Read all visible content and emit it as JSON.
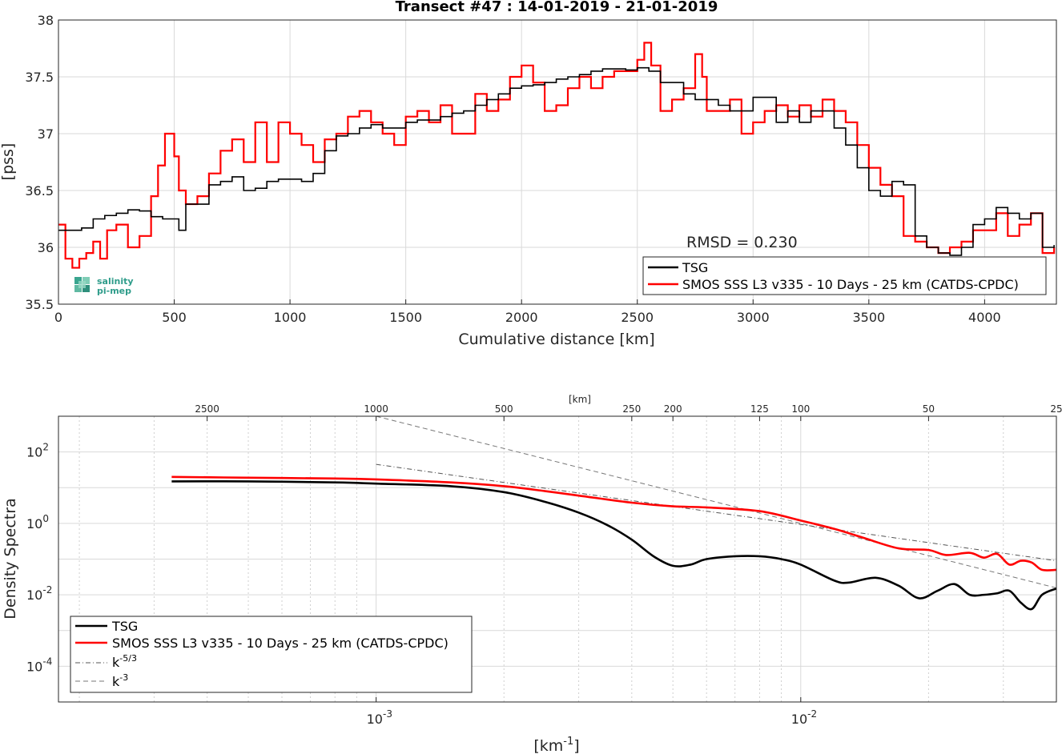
{
  "chart_data": [
    {
      "type": "line",
      "title": "Transect #47 : 14-01-2019 - 21-01-2019",
      "xlabel": "Cumulative distance [km]",
      "ylabel": "[pss]",
      "xlim": [
        0,
        4310
      ],
      "ylim": [
        35.5,
        38
      ],
      "xticks": [
        "0",
        "500",
        "1000",
        "1500",
        "2000",
        "2500",
        "3000",
        "3500",
        "4000"
      ],
      "yticks": [
        "35.5",
        "36",
        "36.5",
        "37",
        "37.5",
        "38"
      ],
      "grid": true,
      "legend_position": "bottom-right",
      "annotation": "RMSD = 0.230",
      "logo": {
        "line1": "salinity",
        "line2": "pi-mep"
      },
      "series": [
        {
          "name": "TSG",
          "color": "#000000",
          "x": [
            0,
            50,
            100,
            150,
            200,
            250,
            300,
            350,
            400,
            450,
            500,
            520,
            550,
            600,
            650,
            700,
            750,
            800,
            850,
            900,
            950,
            1000,
            1050,
            1100,
            1150,
            1200,
            1250,
            1300,
            1350,
            1400,
            1450,
            1500,
            1550,
            1600,
            1650,
            1700,
            1750,
            1800,
            1850,
            1900,
            1950,
            2000,
            2050,
            2100,
            2150,
            2200,
            2250,
            2300,
            2350,
            2400,
            2450,
            2500,
            2550,
            2600,
            2650,
            2700,
            2750,
            2800,
            2850,
            2900,
            2950,
            3000,
            3050,
            3100,
            3150,
            3200,
            3250,
            3300,
            3350,
            3400,
            3450,
            3500,
            3550,
            3600,
            3650,
            3700,
            3750,
            3800,
            3850,
            3900,
            3950,
            4000,
            4050,
            4100,
            4150,
            4200,
            4250,
            4300
          ],
          "y": [
            36.15,
            36.15,
            36.17,
            36.25,
            36.28,
            36.3,
            36.33,
            36.32,
            36.27,
            36.25,
            36.25,
            36.15,
            36.38,
            36.38,
            36.55,
            36.58,
            36.62,
            36.5,
            36.52,
            36.58,
            36.6,
            36.6,
            36.58,
            36.65,
            36.85,
            36.98,
            37.0,
            37.05,
            37.08,
            37.05,
            37.05,
            37.1,
            37.12,
            37.12,
            37.15,
            37.18,
            37.2,
            37.25,
            37.3,
            37.35,
            37.4,
            37.42,
            37.43,
            37.45,
            37.48,
            37.5,
            37.52,
            37.55,
            37.57,
            37.57,
            37.56,
            37.58,
            37.55,
            37.45,
            37.45,
            37.35,
            37.3,
            37.3,
            37.25,
            37.2,
            37.2,
            37.32,
            37.32,
            37.1,
            37.2,
            37.1,
            37.2,
            37.2,
            37.05,
            36.9,
            36.7,
            36.5,
            36.45,
            36.58,
            36.55,
            36.1,
            36.0,
            35.95,
            35.93,
            36.0,
            36.2,
            36.25,
            36.35,
            36.3,
            36.25,
            36.3,
            36.0,
            36.02
          ]
        },
        {
          "name": "SMOS SSS L3 v335 - 10 Days - 25 km (CATDS-CPDC)",
          "color": "#ff0000",
          "x": [
            0,
            30,
            60,
            90,
            120,
            150,
            180,
            210,
            250,
            300,
            350,
            400,
            430,
            460,
            480,
            500,
            520,
            550,
            600,
            650,
            700,
            750,
            800,
            850,
            900,
            950,
            1000,
            1050,
            1100,
            1150,
            1200,
            1250,
            1300,
            1350,
            1400,
            1450,
            1500,
            1550,
            1600,
            1650,
            1700,
            1750,
            1800,
            1850,
            1900,
            1950,
            2000,
            2050,
            2100,
            2150,
            2200,
            2250,
            2300,
            2350,
            2400,
            2450,
            2500,
            2530,
            2560,
            2600,
            2650,
            2700,
            2750,
            2780,
            2800,
            2850,
            2900,
            2950,
            3000,
            3050,
            3100,
            3150,
            3200,
            3250,
            3300,
            3350,
            3400,
            3450,
            3500,
            3550,
            3600,
            3650,
            3700,
            3750,
            3800,
            3850,
            3900,
            3950,
            4000,
            4050,
            4100,
            4150,
            4200,
            4250,
            4300
          ],
          "y": [
            36.2,
            35.9,
            35.82,
            35.9,
            35.95,
            36.05,
            35.9,
            36.15,
            36.2,
            36.0,
            36.1,
            36.45,
            36.72,
            37.0,
            37.0,
            36.8,
            36.5,
            36.38,
            36.45,
            36.65,
            36.85,
            36.95,
            36.75,
            37.1,
            36.75,
            37.1,
            37.0,
            36.9,
            36.75,
            36.95,
            37.0,
            37.15,
            37.2,
            37.1,
            37.0,
            36.9,
            37.15,
            37.2,
            37.1,
            37.25,
            37.0,
            37.0,
            37.35,
            37.2,
            37.3,
            37.5,
            37.6,
            37.45,
            37.2,
            37.25,
            37.4,
            37.5,
            37.4,
            37.5,
            37.55,
            37.55,
            37.65,
            37.8,
            37.6,
            37.2,
            37.3,
            37.4,
            37.7,
            37.5,
            37.2,
            37.2,
            37.3,
            37.0,
            37.1,
            37.2,
            37.25,
            37.15,
            37.25,
            37.15,
            37.3,
            37.2,
            37.1,
            36.9,
            36.7,
            36.55,
            36.45,
            36.1,
            36.05,
            36.0,
            35.95,
            36.0,
            36.05,
            36.15,
            36.15,
            36.3,
            36.1,
            36.2,
            36.3,
            35.95,
            36.0
          ]
        }
      ]
    },
    {
      "type": "line",
      "title": "",
      "xlabel": "[km",
      "xlabel_sup": "-1",
      "xlabel_end": "]",
      "ylabel": "Density Spectra",
      "xscale": "log",
      "yscale": "log",
      "xlim": [
        0.0001786,
        0.04
      ],
      "ylim": [
        1e-05,
        1000
      ],
      "xticks": [
        {
          "v": 0.001,
          "base": "10",
          "exp": "-3"
        },
        {
          "v": 0.01,
          "base": "10",
          "exp": "-2"
        }
      ],
      "yticks": [
        {
          "v": 0.0001,
          "base": "10",
          "exp": "-4"
        },
        {
          "v": 0.01,
          "base": "10",
          "exp": "-2"
        },
        {
          "v": 1,
          "base": "10",
          "exp": "0"
        },
        {
          "v": 100,
          "base": "10",
          "exp": "2"
        }
      ],
      "top_axis_label": "[km]",
      "top_ticks": [
        {
          "km": 2500,
          "label": "2500"
        },
        {
          "km": 1000,
          "label": "1000"
        },
        {
          "km": 500,
          "label": "500"
        },
        {
          "km": 250,
          "label": "250"
        },
        {
          "km": 200,
          "label": "200"
        },
        {
          "km": 125,
          "label": "125"
        },
        {
          "km": 100,
          "label": "100"
        },
        {
          "km": 50,
          "label": "50"
        },
        {
          "km": 25,
          "label": "25"
        }
      ],
      "grid": true,
      "legend_position": "bottom-left",
      "series": [
        {
          "name": "TSG",
          "color": "#000000",
          "x": [
            0.00033,
            0.0005,
            0.0008,
            0.001,
            0.0015,
            0.002,
            0.0025,
            0.003,
            0.0035,
            0.004,
            0.0045,
            0.005,
            0.0055,
            0.006,
            0.007,
            0.008,
            0.009,
            0.01,
            0.012,
            0.013,
            0.015,
            0.017,
            0.019,
            0.021,
            0.023,
            0.025,
            0.027,
            0.029,
            0.031,
            0.033,
            0.035,
            0.037,
            0.04
          ],
          "y": [
            15,
            15,
            14,
            13,
            11,
            7.5,
            4,
            2,
            0.9,
            0.35,
            0.12,
            0.065,
            0.07,
            0.1,
            0.12,
            0.12,
            0.1,
            0.07,
            0.025,
            0.022,
            0.03,
            0.018,
            0.008,
            0.013,
            0.02,
            0.01,
            0.01,
            0.011,
            0.013,
            0.006,
            0.004,
            0.01,
            0.015
          ]
        },
        {
          "name": "SMOS SSS L3 v335 - 10 Days - 25 km (CATDS-CPDC)",
          "color": "#ff0000",
          "x": [
            0.00033,
            0.0005,
            0.0008,
            0.001,
            0.0015,
            0.002,
            0.0025,
            0.003,
            0.004,
            0.005,
            0.006,
            0.008,
            0.01,
            0.012,
            0.014,
            0.017,
            0.02,
            0.022,
            0.025,
            0.027,
            0.029,
            0.031,
            0.033,
            0.035,
            0.037,
            0.04
          ],
          "y": [
            20,
            19,
            18,
            17,
            14,
            11,
            8,
            6,
            3.8,
            3,
            2.8,
            2.2,
            1.2,
            0.7,
            0.4,
            0.2,
            0.18,
            0.13,
            0.15,
            0.11,
            0.14,
            0.07,
            0.09,
            0.08,
            0.05,
            0.05
          ]
        },
        {
          "name": "k-5/3",
          "color": "#555555",
          "style": "dashdot",
          "x": [
            0.001,
            0.04
          ],
          "y": [
            45,
            0.09
          ]
        },
        {
          "name": "k-3",
          "color": "#777777",
          "style": "dash",
          "x": [
            0.001,
            0.04
          ],
          "y": [
            1000,
            0.0156
          ]
        }
      ],
      "legend": [
        {
          "text": "TSG"
        },
        {
          "text": "SMOS SSS L3 v335 - 10 Days - 25 km (CATDS-CPDC)"
        },
        {
          "text": "k",
          "sup": "-5/3"
        },
        {
          "text": "k",
          "sup": "-3"
        }
      ]
    }
  ]
}
